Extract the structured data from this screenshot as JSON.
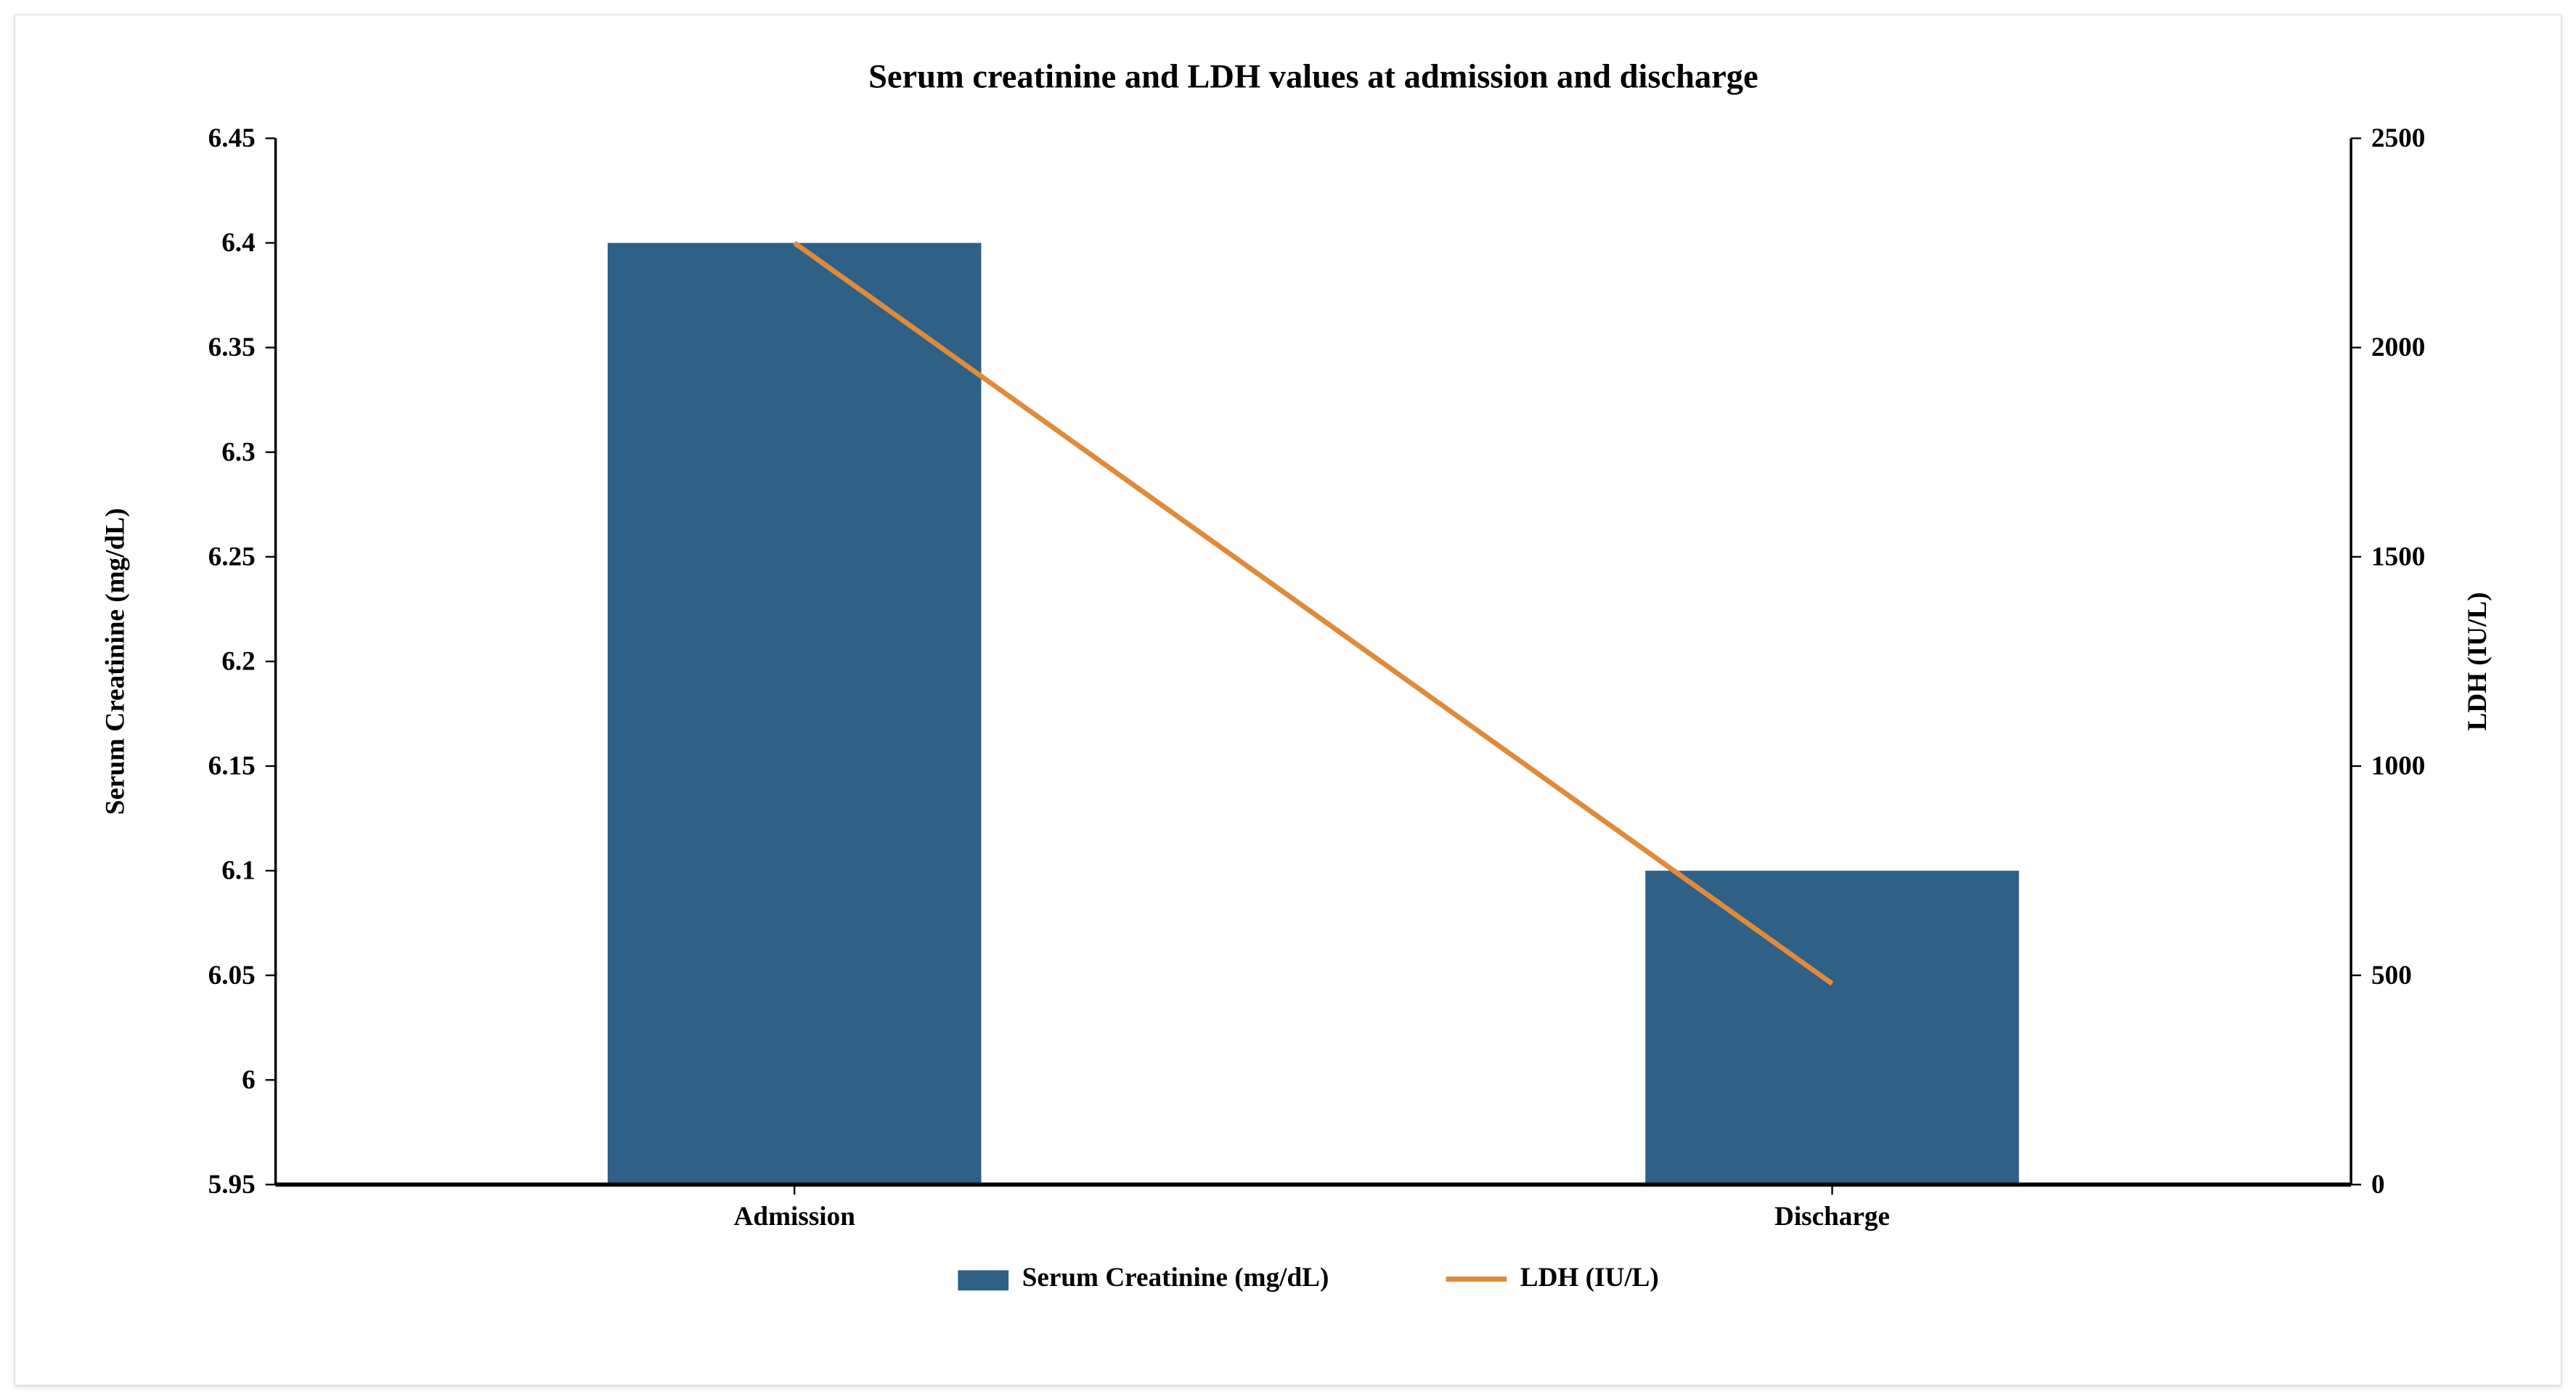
{
  "chart": {
    "type": "bar+line",
    "title": "Serum creatinine and LDH values at admission and discharge",
    "title_fontsize": 20,
    "background_color": "#ffffff",
    "frame_border_color": "#d9d9d9",
    "categories": [
      "Admission",
      "Discharge"
    ],
    "series": {
      "bar": {
        "name": "Serum Creatinine (mg/dL)",
        "values": [
          6.4,
          6.1
        ],
        "color": "#2f6187",
        "bar_width_fraction": 0.36
      },
      "line": {
        "name": "LDH (IU/L)",
        "values": [
          2250,
          480
        ],
        "color": "#e08a3b",
        "line_width": 3
      }
    },
    "y_left": {
      "label": "Serum Creatinine (mg/dL)",
      "min": 5.95,
      "max": 6.45,
      "tick_step": 0.05,
      "ticks": [
        5.95,
        6,
        6.05,
        6.1,
        6.15,
        6.2,
        6.25,
        6.3,
        6.35,
        6.4,
        6.45
      ]
    },
    "y_right": {
      "label": "LDH (IU/L)",
      "min": 0,
      "max": 2500,
      "tick_step": 500,
      "ticks": [
        0,
        500,
        1000,
        1500,
        2000,
        2500
      ]
    },
    "axis_line_color": "#000000",
    "tick_font_size": 16,
    "axis_label_font_size": 16,
    "category_font_size": 16,
    "legend_font_size": 16,
    "legend": {
      "items": [
        {
          "type": "bar",
          "label": "Serum Creatinine (mg/dL)",
          "color": "#2f6187"
        },
        {
          "type": "line",
          "label": "LDH (IU/L)",
          "color": "#e08a3b"
        }
      ]
    }
  }
}
